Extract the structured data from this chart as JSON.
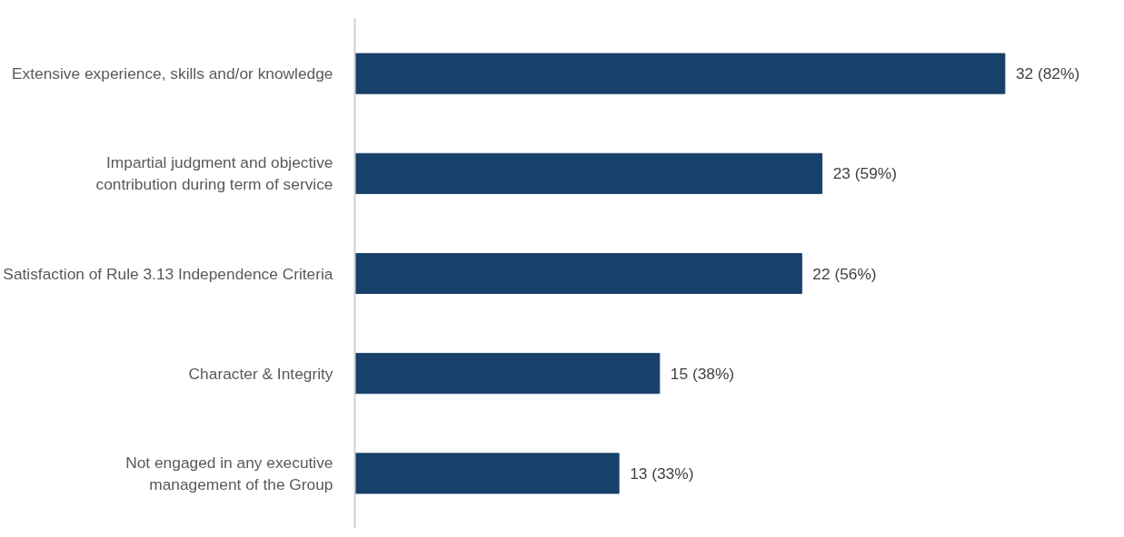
{
  "chart_data": {
    "type": "bar",
    "orientation": "horizontal",
    "categories": [
      "Extensive experience, skills and/or knowledge",
      "Impartial judgment and objective contribution during term of service",
      "Satisfaction of Rule 3.13 Independence Criteria",
      "Character & Integrity",
      "Not engaged in any executive management of the Group"
    ],
    "values": [
      32,
      23,
      22,
      15,
      13
    ],
    "value_labels": [
      "32 (82%)",
      "23 (59%)",
      "22 (56%)",
      "15 (38%)",
      "13 (33%)"
    ],
    "color": "#17406a",
    "grid": false
  }
}
